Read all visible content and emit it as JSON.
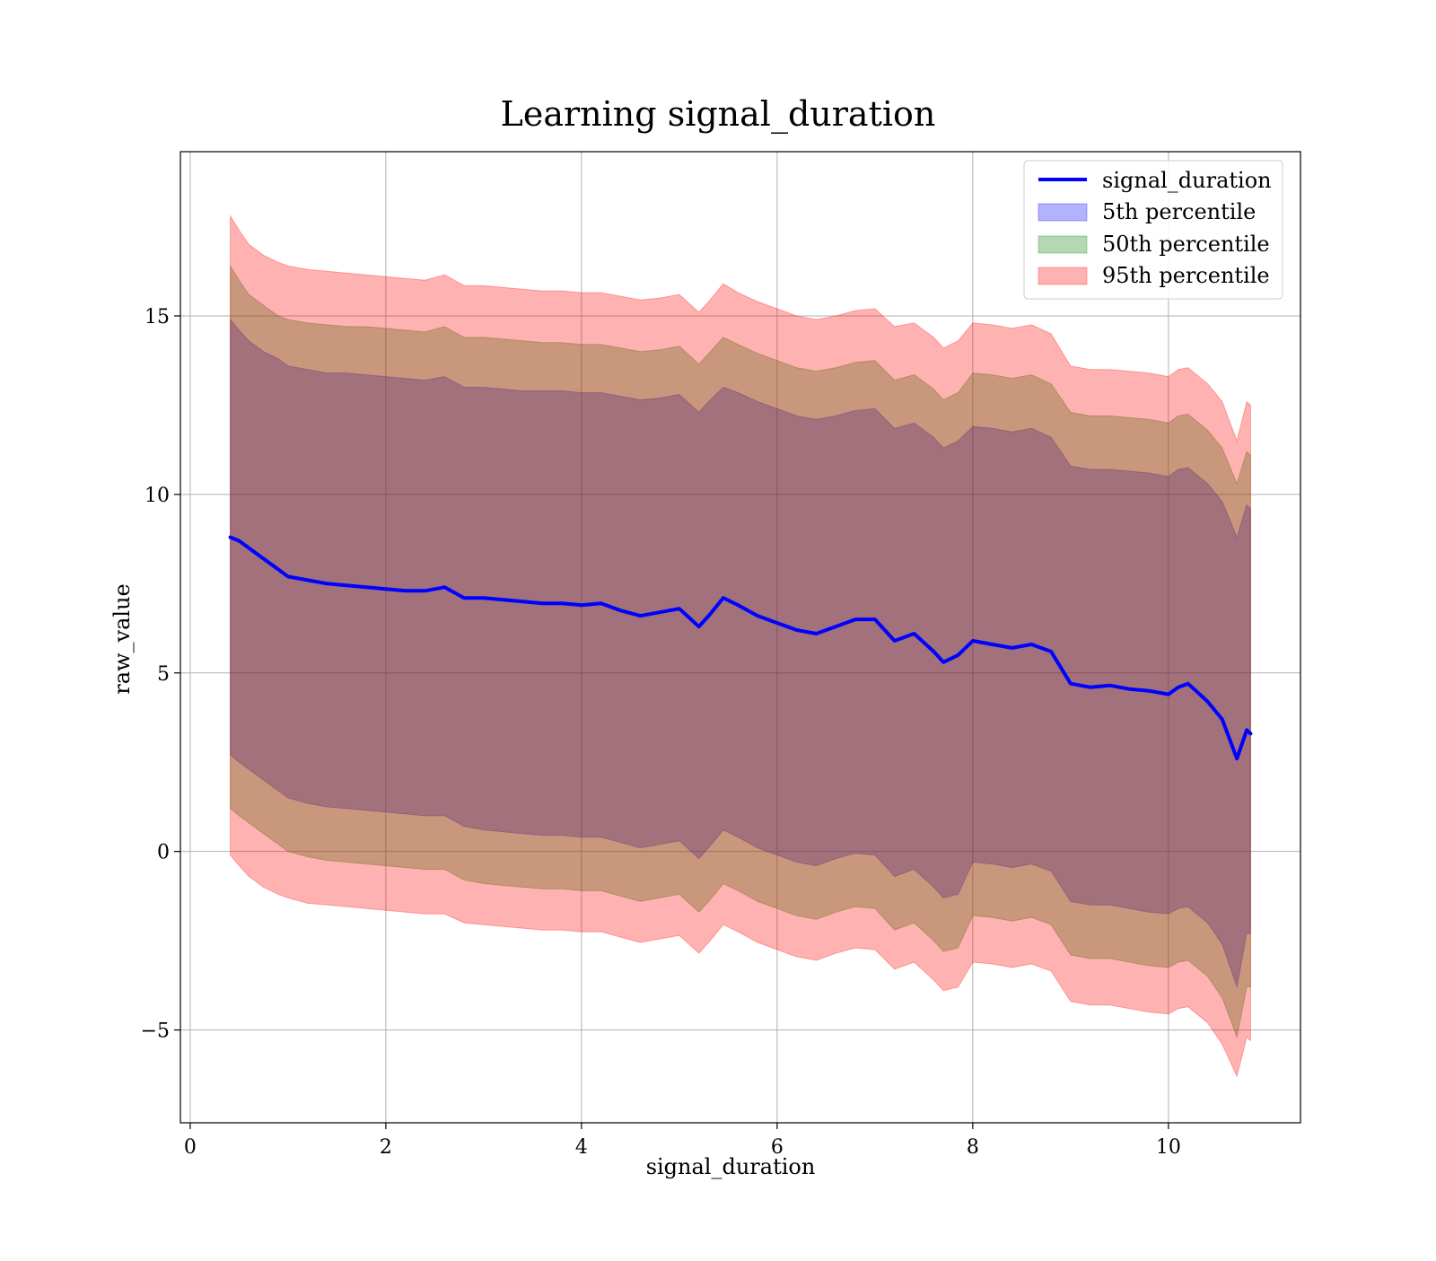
{
  "chart_data": {
    "type": "area",
    "title": "Learning signal_duration",
    "xlabel": "signal_duration",
    "ylabel": "raw_value",
    "xlim": [
      -0.1,
      11.35
    ],
    "ylim": [
      -7.6,
      19.6
    ],
    "x_ticks": [
      0,
      2,
      4,
      6,
      8,
      10
    ],
    "y_ticks": [
      -5,
      0,
      5,
      10,
      15
    ],
    "x_tick_labels": [
      "0",
      "2",
      "4",
      "6",
      "8",
      "10"
    ],
    "y_tick_labels": [
      "−5",
      "0",
      "5",
      "10",
      "15"
    ],
    "grid": true,
    "legend_position": "upper right",
    "legend": [
      {
        "label": "signal_duration",
        "kind": "line",
        "color": "#0000ff"
      },
      {
        "label": "5th percentile",
        "kind": "band",
        "color": "#0000ff"
      },
      {
        "label": "50th percentile",
        "kind": "band",
        "color": "#008000"
      },
      {
        "label": "95th percentile",
        "kind": "band",
        "color": "#ff0000"
      }
    ],
    "x": [
      0.41,
      0.5,
      0.6,
      0.75,
      0.9,
      1.0,
      1.2,
      1.4,
      1.6,
      1.8,
      2.0,
      2.2,
      2.4,
      2.6,
      2.8,
      3.0,
      3.2,
      3.4,
      3.6,
      3.8,
      4.0,
      4.2,
      4.4,
      4.6,
      4.8,
      5.0,
      5.2,
      5.3,
      5.45,
      5.6,
      5.8,
      6.0,
      6.2,
      6.4,
      6.6,
      6.8,
      7.0,
      7.2,
      7.4,
      7.6,
      7.7,
      7.85,
      8.0,
      8.2,
      8.4,
      8.6,
      8.8,
      9.0,
      9.2,
      9.4,
      9.6,
      9.8,
      10.0,
      10.1,
      10.2,
      10.4,
      10.55,
      10.7,
      10.8,
      10.84
    ],
    "series": [
      {
        "name": "signal_duration",
        "values": [
          8.8,
          8.7,
          8.5,
          8.2,
          7.9,
          7.7,
          7.6,
          7.5,
          7.45,
          7.4,
          7.35,
          7.3,
          7.3,
          7.4,
          7.1,
          7.1,
          7.05,
          7.0,
          6.95,
          6.95,
          6.9,
          6.95,
          6.75,
          6.6,
          6.7,
          6.8,
          6.3,
          6.6,
          7.1,
          6.9,
          6.6,
          6.4,
          6.2,
          6.1,
          6.3,
          6.5,
          6.5,
          5.9,
          6.1,
          5.6,
          5.3,
          5.5,
          5.9,
          5.8,
          5.7,
          5.8,
          5.6,
          4.7,
          4.6,
          4.65,
          4.55,
          4.5,
          4.4,
          4.6,
          4.7,
          4.2,
          3.7,
          2.6,
          3.4,
          3.3
        ]
      },
      {
        "name": "5th percentile",
        "values_lower": [
          2.7,
          2.5,
          2.3,
          2.0,
          1.7,
          1.5,
          1.35,
          1.25,
          1.2,
          1.15,
          1.1,
          1.05,
          1.0,
          1.0,
          0.7,
          0.6,
          0.55,
          0.5,
          0.45,
          0.45,
          0.4,
          0.4,
          0.25,
          0.1,
          0.2,
          0.3,
          -0.2,
          0.1,
          0.6,
          0.4,
          0.1,
          -0.1,
          -0.3,
          -0.4,
          -0.2,
          -0.05,
          -0.1,
          -0.7,
          -0.5,
          -1.0,
          -1.3,
          -1.2,
          -0.3,
          -0.35,
          -0.45,
          -0.35,
          -0.55,
          -1.4,
          -1.5,
          -1.5,
          -1.6,
          -1.7,
          -1.75,
          -1.6,
          -1.55,
          -2.0,
          -2.6,
          -3.8,
          -2.3,
          -2.3
        ],
        "values_upper": [
          14.9,
          14.6,
          14.3,
          14.0,
          13.8,
          13.6,
          13.5,
          13.4,
          13.4,
          13.35,
          13.3,
          13.25,
          13.2,
          13.3,
          13.0,
          13.0,
          12.95,
          12.9,
          12.9,
          12.9,
          12.85,
          12.85,
          12.75,
          12.65,
          12.7,
          12.8,
          12.3,
          12.6,
          13.0,
          12.85,
          12.6,
          12.4,
          12.2,
          12.1,
          12.2,
          12.35,
          12.4,
          11.85,
          12.0,
          11.6,
          11.3,
          11.5,
          11.9,
          11.85,
          11.75,
          11.85,
          11.6,
          10.8,
          10.7,
          10.7,
          10.65,
          10.6,
          10.5,
          10.7,
          10.75,
          10.3,
          9.8,
          8.8,
          9.7,
          9.6
        ]
      },
      {
        "name": "50th percentile",
        "values_lower": [
          1.2,
          1.0,
          0.8,
          0.5,
          0.2,
          0.0,
          -0.15,
          -0.25,
          -0.3,
          -0.35,
          -0.4,
          -0.45,
          -0.5,
          -0.5,
          -0.8,
          -0.9,
          -0.95,
          -1.0,
          -1.05,
          -1.05,
          -1.1,
          -1.1,
          -1.25,
          -1.4,
          -1.3,
          -1.2,
          -1.7,
          -1.4,
          -0.9,
          -1.1,
          -1.4,
          -1.6,
          -1.8,
          -1.9,
          -1.7,
          -1.55,
          -1.6,
          -2.2,
          -2.0,
          -2.5,
          -2.8,
          -2.7,
          -1.8,
          -1.85,
          -1.95,
          -1.85,
          -2.05,
          -2.9,
          -3.0,
          -3.0,
          -3.1,
          -3.2,
          -3.25,
          -3.1,
          -3.05,
          -3.5,
          -4.1,
          -5.2,
          -3.8,
          -3.8
        ],
        "values_upper": [
          16.4,
          16.0,
          15.6,
          15.3,
          15.0,
          14.9,
          14.8,
          14.75,
          14.7,
          14.7,
          14.65,
          14.6,
          14.55,
          14.7,
          14.4,
          14.4,
          14.35,
          14.3,
          14.25,
          14.25,
          14.2,
          14.2,
          14.1,
          14.0,
          14.05,
          14.15,
          13.65,
          13.95,
          14.4,
          14.2,
          13.95,
          13.75,
          13.55,
          13.45,
          13.55,
          13.7,
          13.75,
          13.2,
          13.35,
          12.95,
          12.65,
          12.85,
          13.4,
          13.35,
          13.25,
          13.35,
          13.1,
          12.3,
          12.2,
          12.2,
          12.15,
          12.1,
          12.0,
          12.2,
          12.25,
          11.8,
          11.3,
          10.3,
          11.2,
          11.1
        ]
      },
      {
        "name": "95th percentile",
        "values_lower": [
          -0.1,
          -0.4,
          -0.7,
          -1.0,
          -1.2,
          -1.3,
          -1.45,
          -1.5,
          -1.55,
          -1.6,
          -1.65,
          -1.7,
          -1.75,
          -1.75,
          -2.0,
          -2.05,
          -2.1,
          -2.15,
          -2.2,
          -2.2,
          -2.25,
          -2.25,
          -2.4,
          -2.55,
          -2.45,
          -2.35,
          -2.85,
          -2.55,
          -2.05,
          -2.25,
          -2.55,
          -2.75,
          -2.95,
          -3.05,
          -2.85,
          -2.7,
          -2.75,
          -3.3,
          -3.1,
          -3.6,
          -3.9,
          -3.8,
          -3.1,
          -3.15,
          -3.25,
          -3.15,
          -3.35,
          -4.2,
          -4.3,
          -4.3,
          -4.4,
          -4.5,
          -4.55,
          -4.4,
          -4.35,
          -4.8,
          -5.4,
          -6.3,
          -5.2,
          -5.3
        ],
        "values_upper": [
          17.8,
          17.4,
          17.0,
          16.7,
          16.5,
          16.4,
          16.3,
          16.25,
          16.2,
          16.15,
          16.1,
          16.05,
          16.0,
          16.15,
          15.85,
          15.85,
          15.8,
          15.75,
          15.7,
          15.7,
          15.65,
          15.65,
          15.55,
          15.45,
          15.5,
          15.6,
          15.1,
          15.4,
          15.9,
          15.65,
          15.4,
          15.2,
          15.0,
          14.9,
          15.0,
          15.15,
          15.2,
          14.7,
          14.8,
          14.4,
          14.1,
          14.3,
          14.8,
          14.75,
          14.65,
          14.75,
          14.5,
          13.6,
          13.5,
          13.5,
          13.45,
          13.4,
          13.3,
          13.5,
          13.55,
          13.1,
          12.6,
          11.5,
          12.6,
          12.5
        ]
      }
    ]
  }
}
